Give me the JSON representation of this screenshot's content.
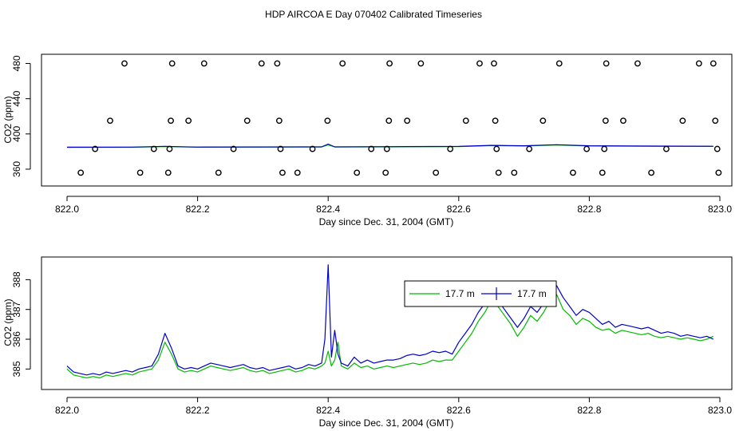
{
  "page_title": "HDP AIRCOA E  Day 070402  Calibrated Timeseries",
  "colors": {
    "green": "#00bb00",
    "blue": "#0000cc",
    "black": "#000000"
  },
  "chart_data": [
    {
      "type": "scatter",
      "title": "",
      "xlabel": "Day since Dec. 31, 2004 (GMT)",
      "ylabel": "CO2 (ppm)",
      "xlim": [
        822.0,
        823.0
      ],
      "ylim": [
        350,
        485
      ],
      "xticks": [
        822.0,
        822.2,
        822.4,
        822.6,
        822.8,
        823.0
      ],
      "xtick_labels": [
        "822.0",
        "822.2",
        "822.4",
        "822.6",
        "822.8",
        "823.0"
      ],
      "yticks": [
        360,
        400,
        440,
        480
      ],
      "ytick_labels": [
        "360",
        "400",
        "440",
        "480"
      ],
      "grid": false,
      "point_series": [
        {
          "style": "open-circle",
          "x": [
            822.088,
            822.161,
            822.21,
            822.298,
            822.322,
            822.422,
            822.494,
            822.542,
            822.632,
            822.654,
            822.754,
            822.826,
            822.874,
            822.968,
            822.99
          ],
          "y": [
            480,
            480,
            480,
            480,
            480,
            480,
            480,
            480,
            480,
            480,
            480,
            480,
            480,
            480,
            480
          ]
        },
        {
          "style": "open-circle",
          "x": [
            822.066,
            822.159,
            822.186,
            822.276,
            822.325,
            822.399,
            822.493,
            822.521,
            822.611,
            822.656,
            822.729,
            822.825,
            822.852,
            822.943,
            822.993
          ],
          "y": [
            415,
            415,
            415,
            415,
            415,
            415,
            415,
            415,
            415,
            415,
            415,
            415,
            415,
            415,
            415
          ]
        },
        {
          "style": "open-circle",
          "x": [
            822.043,
            822.133,
            822.157,
            822.255,
            822.327,
            822.376,
            822.466,
            822.49,
            822.587,
            822.658,
            822.708,
            822.796,
            822.823,
            822.918,
            822.996
          ],
          "y": [
            383,
            383,
            383,
            383,
            383,
            383,
            383,
            383,
            383,
            383,
            383,
            383,
            383,
            383,
            383
          ]
        },
        {
          "style": "open-circle",
          "x": [
            822.021,
            822.112,
            822.155,
            822.232,
            822.33,
            822.353,
            822.444,
            822.488,
            822.565,
            822.661,
            822.685,
            822.775,
            822.82,
            822.895,
            822.998
          ],
          "y": [
            356,
            356,
            356,
            356,
            356,
            356,
            356,
            356,
            356,
            356,
            356,
            356,
            356,
            356,
            356
          ]
        }
      ],
      "line_series": [
        {
          "color": "green",
          "x": [
            822.0,
            822.1,
            822.15,
            822.2,
            822.3,
            822.39,
            822.4,
            822.41,
            822.5,
            822.6,
            822.65,
            822.7,
            822.75,
            822.8,
            822.9,
            822.99
          ],
          "y": [
            384.8,
            384.9,
            385.6,
            385,
            385.1,
            385.2,
            387.5,
            385.2,
            385.3,
            385.6,
            386.8,
            386.3,
            387.5,
            386.3,
            386,
            386
          ]
        },
        {
          "color": "blue",
          "x": [
            822.0,
            822.1,
            822.15,
            822.2,
            822.3,
            822.39,
            822.4,
            822.41,
            822.5,
            822.6,
            822.65,
            822.7,
            822.75,
            822.8,
            822.9,
            822.99
          ],
          "y": [
            385,
            385.1,
            386,
            385.1,
            385.2,
            385.3,
            388.5,
            385.3,
            385.6,
            385.9,
            387.1,
            386.6,
            387.8,
            386.6,
            386.2,
            386
          ]
        }
      ]
    },
    {
      "type": "line",
      "title": "",
      "xlabel": "Day since Dec. 31, 2004 (GMT)",
      "ylabel": "CO2 (ppm)",
      "xlim": [
        822.0,
        823.0
      ],
      "ylim": [
        384.5,
        388.6
      ],
      "xticks": [
        822.0,
        822.2,
        822.4,
        822.6,
        822.8,
        823.0
      ],
      "xtick_labels": [
        "822.0",
        "822.2",
        "822.4",
        "822.6",
        "822.8",
        "823.0"
      ],
      "yticks": [
        385,
        386,
        387,
        388
      ],
      "ytick_labels": [
        "385",
        "386",
        "387",
        "388"
      ],
      "grid": false,
      "legend_position": "top-right",
      "legend": [
        {
          "label": "17.7 m",
          "color": "green",
          "marker": "line"
        },
        {
          "label": "17.7 m",
          "color": "blue",
          "marker": "line-plus"
        }
      ],
      "series": [
        {
          "name": "17.7 m",
          "color": "green",
          "x": [
            822.0,
            822.01,
            822.02,
            822.03,
            822.04,
            822.05,
            822.06,
            822.07,
            822.08,
            822.09,
            822.1,
            822.11,
            822.12,
            822.13,
            822.14,
            822.15,
            822.16,
            822.17,
            822.18,
            822.19,
            822.2,
            822.21,
            822.22,
            822.23,
            822.24,
            822.25,
            822.26,
            822.27,
            822.28,
            822.29,
            822.3,
            822.31,
            822.32,
            822.33,
            822.34,
            822.35,
            822.36,
            822.37,
            822.38,
            822.39,
            822.395,
            822.4,
            822.405,
            822.41,
            822.415,
            822.42,
            822.43,
            822.44,
            822.45,
            822.46,
            822.47,
            822.48,
            822.49,
            822.5,
            822.51,
            822.52,
            822.53,
            822.54,
            822.55,
            822.56,
            822.57,
            822.58,
            822.59,
            822.6,
            822.61,
            822.62,
            822.63,
            822.64,
            822.65,
            822.66,
            822.67,
            822.68,
            822.69,
            822.7,
            822.71,
            822.72,
            822.73,
            822.74,
            822.75,
            822.76,
            822.77,
            822.78,
            822.79,
            822.8,
            822.81,
            822.82,
            822.83,
            822.84,
            822.85,
            822.86,
            822.87,
            822.88,
            822.89,
            822.9,
            822.91,
            822.92,
            822.93,
            822.94,
            822.95,
            822.96,
            822.97,
            822.98,
            822.99
          ],
          "values": [
            385.0,
            384.8,
            384.75,
            384.7,
            384.75,
            384.7,
            384.8,
            384.75,
            384.8,
            384.85,
            384.8,
            384.9,
            384.95,
            385.0,
            385.3,
            385.9,
            385.5,
            385.0,
            384.9,
            384.95,
            384.9,
            385.0,
            385.1,
            385.05,
            385.0,
            384.95,
            385.0,
            385.05,
            384.95,
            384.9,
            384.95,
            384.85,
            384.9,
            384.95,
            385.0,
            384.9,
            384.95,
            385.05,
            385.0,
            385.1,
            385.2,
            385.6,
            385.1,
            385.3,
            385.9,
            385.1,
            385.0,
            385.2,
            385.05,
            385.1,
            385.0,
            385.05,
            385.1,
            385.05,
            385.1,
            385.15,
            385.2,
            385.15,
            385.2,
            385.3,
            385.25,
            385.3,
            385.3,
            385.6,
            385.9,
            386.2,
            386.6,
            386.9,
            387.3,
            387.1,
            386.8,
            386.5,
            386.1,
            386.4,
            386.8,
            386.6,
            386.9,
            387.3,
            387.5,
            387.0,
            386.8,
            386.5,
            386.7,
            386.6,
            386.4,
            386.3,
            386.35,
            386.2,
            386.3,
            386.25,
            386.2,
            386.15,
            386.2,
            386.1,
            386.05,
            386.1,
            386.05,
            386.0,
            386.05,
            386.0,
            385.95,
            386.0,
            386.1
          ]
        },
        {
          "name": "17.7 m",
          "color": "blue",
          "x": [
            822.0,
            822.01,
            822.02,
            822.03,
            822.04,
            822.05,
            822.06,
            822.07,
            822.08,
            822.09,
            822.1,
            822.11,
            822.12,
            822.13,
            822.14,
            822.15,
            822.16,
            822.17,
            822.18,
            822.19,
            822.2,
            822.21,
            822.22,
            822.23,
            822.24,
            822.25,
            822.26,
            822.27,
            822.28,
            822.29,
            822.3,
            822.31,
            822.32,
            822.33,
            822.34,
            822.35,
            822.36,
            822.37,
            822.38,
            822.39,
            822.395,
            822.4,
            822.405,
            822.41,
            822.415,
            822.42,
            822.43,
            822.44,
            822.45,
            822.46,
            822.47,
            822.48,
            822.49,
            822.5,
            822.51,
            822.52,
            822.53,
            822.54,
            822.55,
            822.56,
            822.57,
            822.58,
            822.59,
            822.6,
            822.61,
            822.62,
            822.63,
            822.64,
            822.65,
            822.66,
            822.67,
            822.68,
            822.69,
            822.7,
            822.71,
            822.72,
            822.73,
            822.74,
            822.75,
            822.76,
            822.77,
            822.78,
            822.79,
            822.8,
            822.81,
            822.82,
            822.83,
            822.84,
            822.85,
            822.86,
            822.87,
            822.88,
            822.89,
            822.9,
            822.91,
            822.92,
            822.93,
            822.94,
            822.95,
            822.96,
            822.97,
            822.98,
            822.99
          ],
          "values": [
            385.1,
            384.9,
            384.85,
            384.8,
            384.85,
            384.8,
            384.9,
            384.85,
            384.9,
            384.95,
            384.9,
            385.0,
            385.05,
            385.1,
            385.5,
            386.2,
            385.7,
            385.1,
            385.0,
            385.05,
            385.0,
            385.1,
            385.2,
            385.15,
            385.1,
            385.05,
            385.1,
            385.15,
            385.05,
            385.0,
            385.05,
            384.95,
            385.0,
            385.05,
            385.1,
            385.0,
            385.05,
            385.15,
            385.1,
            385.2,
            386.0,
            388.5,
            385.4,
            386.3,
            385.5,
            385.2,
            385.1,
            385.4,
            385.2,
            385.3,
            385.2,
            385.25,
            385.3,
            385.3,
            385.35,
            385.45,
            385.5,
            385.45,
            385.5,
            385.6,
            385.55,
            385.6,
            385.5,
            385.9,
            386.2,
            386.5,
            386.9,
            387.2,
            387.4,
            387.3,
            387.0,
            386.7,
            386.4,
            386.7,
            387.1,
            386.9,
            387.2,
            387.6,
            387.8,
            387.4,
            387.1,
            386.8,
            387.0,
            386.9,
            386.7,
            386.5,
            386.6,
            386.4,
            386.5,
            386.45,
            386.4,
            386.35,
            386.4,
            386.3,
            386.2,
            386.25,
            386.2,
            386.1,
            386.15,
            386.1,
            386.05,
            386.1,
            386.0
          ]
        }
      ]
    }
  ]
}
